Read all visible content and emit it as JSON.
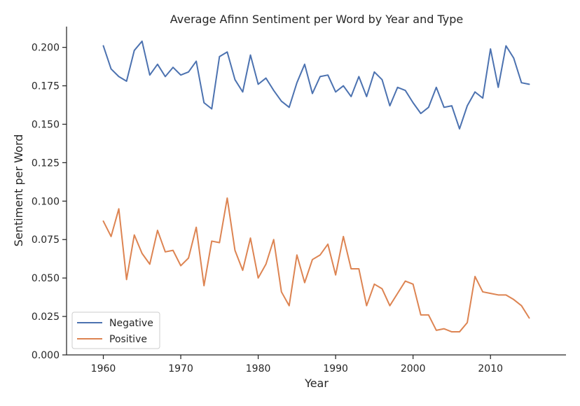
{
  "chart_data": {
    "type": "line",
    "title": "Average Afinn Sentiment per Word by Year and Type",
    "xlabel": "Year",
    "ylabel": "Sentiment per Word",
    "xlim": [
      1955.25,
      2019.75
    ],
    "ylim": [
      0.0,
      0.2135
    ],
    "x_ticks": [
      1960,
      1970,
      1980,
      1990,
      2000,
      2010
    ],
    "y_ticks": [
      0.0,
      0.025,
      0.05,
      0.075,
      0.1,
      0.125,
      0.15,
      0.175,
      0.2
    ],
    "y_tick_labels": [
      "0.000",
      "0.025",
      "0.050",
      "0.075",
      "0.100",
      "0.125",
      "0.150",
      "0.175",
      "0.200"
    ],
    "grid": false,
    "legend_position": "lower-left",
    "x": [
      1960,
      1961,
      1962,
      1963,
      1964,
      1965,
      1966,
      1967,
      1968,
      1969,
      1970,
      1971,
      1972,
      1973,
      1974,
      1975,
      1976,
      1977,
      1978,
      1979,
      1980,
      1981,
      1982,
      1983,
      1984,
      1985,
      1986,
      1987,
      1988,
      1989,
      1990,
      1991,
      1992,
      1993,
      1994,
      1995,
      1996,
      1997,
      1998,
      1999,
      2000,
      2001,
      2002,
      2003,
      2004,
      2005,
      2006,
      2007,
      2008,
      2009,
      2010,
      2011,
      2012,
      2013,
      2014,
      2015
    ],
    "series": [
      {
        "name": "Negative",
        "color": "#4c72b0",
        "values": [
          0.201,
          0.186,
          0.181,
          0.178,
          0.198,
          0.204,
          0.182,
          0.189,
          0.181,
          0.187,
          0.182,
          0.184,
          0.191,
          0.164,
          0.16,
          0.194,
          0.197,
          0.179,
          0.171,
          0.195,
          0.176,
          0.18,
          0.172,
          0.165,
          0.161,
          0.177,
          0.189,
          0.17,
          0.181,
          0.182,
          0.171,
          0.175,
          0.168,
          0.181,
          0.168,
          0.184,
          0.179,
          0.162,
          0.174,
          0.172,
          0.164,
          0.157,
          0.161,
          0.174,
          0.161,
          0.162,
          0.147,
          0.162,
          0.171,
          0.167,
          0.199,
          0.174,
          0.201,
          0.193,
          0.177,
          0.176
        ]
      },
      {
        "name": "Positive",
        "color": "#dd8452",
        "values": [
          0.087,
          0.077,
          0.095,
          0.049,
          0.078,
          0.066,
          0.059,
          0.081,
          0.067,
          0.068,
          0.058,
          0.063,
          0.083,
          0.045,
          0.074,
          0.073,
          0.102,
          0.068,
          0.055,
          0.076,
          0.05,
          0.059,
          0.075,
          0.041,
          0.032,
          0.065,
          0.047,
          0.062,
          0.065,
          0.072,
          0.052,
          0.077,
          0.056,
          0.056,
          0.032,
          0.046,
          0.043,
          0.032,
          0.04,
          0.048,
          0.046,
          0.026,
          0.026,
          0.016,
          0.017,
          0.015,
          0.015,
          0.021,
          0.051,
          0.041,
          0.04,
          0.039,
          0.039,
          0.036,
          0.032,
          0.024
        ]
      }
    ]
  }
}
